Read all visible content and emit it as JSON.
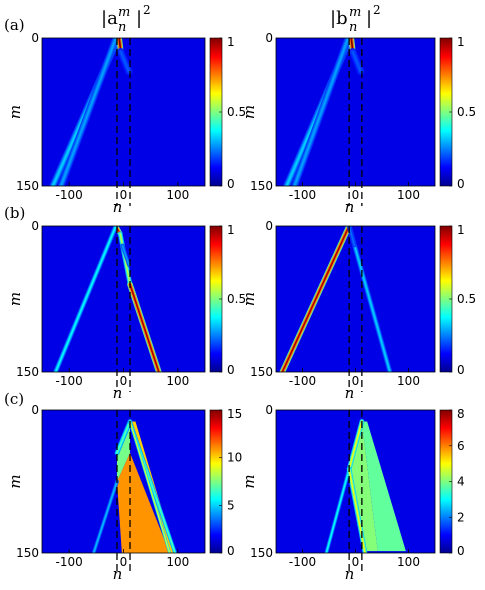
{
  "column_titles": [
    "|a",
    "|b"
  ],
  "column_title_super": "m",
  "column_title_sub": "n",
  "column_title_power": "2",
  "chart_data": [
    {
      "type": "heatmap",
      "row": "(a)",
      "quantity": "|a_n^m|^2",
      "xlabel": "n",
      "ylabel": "m",
      "xlim": [
        -150,
        150
      ],
      "ylim": [
        0,
        150
      ],
      "xticks": [
        "-100",
        "0",
        "100"
      ],
      "yticks": [
        "0",
        "150"
      ],
      "clim": [
        0,
        1
      ],
      "cbar_ticks": [
        "1",
        "0.5",
        "0"
      ],
      "cbar_values": [
        1,
        0.5,
        0
      ],
      "dashed_lines_n": [
        -12,
        12
      ],
      "beams": [
        {
          "start": [
            -10,
            0
          ],
          "end": [
            -130,
            150
          ],
          "peak": 0.25,
          "width": 3.5
        },
        {
          "start": [
            -14,
            0
          ],
          "end": [
            -115,
            150
          ],
          "peak": 0.2,
          "width": 3.5
        },
        {
          "start": [
            -8,
            0
          ],
          "end": [
            -5,
            14
          ],
          "peak": 1.0,
          "width": 3
        },
        {
          "start": [
            -5,
            14
          ],
          "end": [
            10,
            34
          ],
          "peak": 0.12,
          "width": 4
        }
      ]
    },
    {
      "type": "heatmap",
      "row": "(a)",
      "quantity": "|b_n^m|^2",
      "xlabel": "n",
      "ylabel": "m",
      "xlim": [
        -150,
        150
      ],
      "ylim": [
        0,
        150
      ],
      "xticks": [
        "-100",
        "0",
        "100"
      ],
      "yticks": [
        "0",
        "150"
      ],
      "clim": [
        0,
        1
      ],
      "cbar_ticks": [
        "1",
        "0.5",
        "0"
      ],
      "cbar_values": [
        1,
        0.5,
        0
      ],
      "dashed_lines_n": [
        -12,
        12
      ],
      "beams": [
        {
          "start": [
            -10,
            0
          ],
          "end": [
            -130,
            150
          ],
          "peak": 0.25,
          "width": 3.5
        },
        {
          "start": [
            -14,
            0
          ],
          "end": [
            -115,
            150
          ],
          "peak": 0.2,
          "width": 3.5
        },
        {
          "start": [
            -8,
            0
          ],
          "end": [
            -5,
            14
          ],
          "peak": 1.0,
          "width": 3
        },
        {
          "start": [
            -5,
            14
          ],
          "end": [
            10,
            34
          ],
          "peak": 0.12,
          "width": 4
        }
      ]
    },
    {
      "type": "heatmap",
      "row": "(b)",
      "quantity": "|a_n^m|^2",
      "xlabel": "n",
      "ylabel": "m",
      "xlim": [
        -150,
        150
      ],
      "ylim": [
        0,
        150
      ],
      "xticks": [
        "-100",
        "0",
        "100"
      ],
      "yticks": [
        "0",
        "150"
      ],
      "clim": [
        0,
        1
      ],
      "cbar_ticks": [
        "1",
        "0.5",
        "0"
      ],
      "cbar_values": [
        1,
        0.5,
        0
      ],
      "dashed_lines_n": [
        -12,
        12
      ],
      "beams": [
        {
          "start": [
            -14,
            0
          ],
          "end": [
            -6,
            8
          ],
          "peak": 0.9,
          "width": 2.5
        },
        {
          "start": [
            -6,
            8
          ],
          "end": [
            12,
            60
          ],
          "peak": 0.5,
          "width": 2.5
        },
        {
          "start": [
            12,
            60
          ],
          "end": [
            65,
            150
          ],
          "peak": 0.95,
          "width": 3
        },
        {
          "start": [
            -14,
            0
          ],
          "end": [
            -125,
            150
          ],
          "peak": 0.3,
          "width": 2.5
        },
        {
          "start": [
            -2,
            20
          ],
          "end": [
            10,
            40
          ],
          "peak": 0.2,
          "width": 2
        }
      ]
    },
    {
      "type": "heatmap",
      "row": "(b)",
      "quantity": "|b_n^m|^2",
      "xlabel": "n",
      "ylabel": "m",
      "xlim": [
        -150,
        150
      ],
      "ylim": [
        0,
        150
      ],
      "xticks": [
        "-100",
        "0",
        "100"
      ],
      "yticks": [
        "0",
        "150"
      ],
      "clim": [
        0,
        1
      ],
      "cbar_ticks": [
        "1",
        "0.5",
        "0"
      ],
      "cbar_values": [
        1,
        0.5,
        0
      ],
      "dashed_lines_n": [
        -12,
        12
      ],
      "beams": [
        {
          "start": [
            -12,
            0
          ],
          "end": [
            -138,
            150
          ],
          "peak": 0.95,
          "width": 3
        },
        {
          "start": [
            -12,
            0
          ],
          "end": [
            65,
            150
          ],
          "peak": 0.25,
          "width": 2.5
        },
        {
          "start": [
            -12,
            0
          ],
          "end": [
            -2,
            20
          ],
          "peak": 0.15,
          "width": 2
        }
      ]
    },
    {
      "type": "heatmap",
      "row": "(c)",
      "quantity": "|a_n^m|^2",
      "xlabel": "n",
      "ylabel": "m",
      "xlim": [
        -150,
        150
      ],
      "ylim": [
        0,
        150
      ],
      "xticks": [
        "-100",
        "0",
        "100"
      ],
      "yticks": [
        "0",
        "150"
      ],
      "clim": [
        0,
        15
      ],
      "cbar_ticks": [
        "15",
        "10",
        "5",
        "0"
      ],
      "cbar_values": [
        15,
        10,
        5,
        0
      ],
      "dashed_lines_n": [
        -12,
        12
      ],
      "regions": [
        {
          "shape": "polygon",
          "points": [
            [
              12,
              12
            ],
            [
              -12,
              45
            ],
            [
              -12,
              75
            ],
            [
              12,
              45
            ]
          ],
          "value": 6.5
        },
        {
          "shape": "polygon",
          "points": [
            [
              12,
              45
            ],
            [
              -12,
              75
            ],
            [
              -3,
              150
            ],
            [
              85,
              150
            ]
          ],
          "value": 10.5
        },
        {
          "shape": "polygon",
          "points": [
            [
              12,
              12
            ],
            [
              22,
              12
            ],
            [
              95,
              150
            ],
            [
              85,
              150
            ]
          ],
          "value": 9.5
        }
      ],
      "beams": [
        {
          "start": [
            12,
            12
          ],
          "end": [
            -12,
            45
          ],
          "peak": 6,
          "width": 2.5
        },
        {
          "start": [
            -12,
            75
          ],
          "end": [
            -55,
            150
          ],
          "peak": 3.5,
          "width": 2
        },
        {
          "start": [
            12,
            12
          ],
          "end": [
            95,
            150
          ],
          "peak": 6,
          "width": 2
        },
        {
          "start": [
            12,
            12
          ],
          "end": [
            85,
            150
          ],
          "peak": 8,
          "width": 1.5
        }
      ]
    },
    {
      "type": "heatmap",
      "row": "(c)",
      "quantity": "|b_n^m|^2",
      "xlabel": "n",
      "ylabel": "m",
      "xlim": [
        -150,
        150
      ],
      "ylim": [
        0,
        150
      ],
      "xticks": [
        "-100",
        "0",
        "100"
      ],
      "yticks": [
        "0",
        "150"
      ],
      "clim": [
        0,
        8
      ],
      "cbar_ticks": [
        "8",
        "6",
        "4",
        "2",
        "0"
      ],
      "cbar_values": [
        8,
        6,
        4,
        2,
        0
      ],
      "dashed_lines_n": [
        -12,
        12
      ],
      "regions": [
        {
          "shape": "polygon",
          "points": [
            [
              12,
              12
            ],
            [
              -12,
              62
            ],
            [
              18,
              148
            ],
            [
              42,
              148
            ]
          ],
          "value": 3.6
        },
        {
          "shape": "polygon",
          "points": [
            [
              12,
              12
            ],
            [
              42,
              148
            ],
            [
              95,
              148
            ],
            [
              22,
              12
            ]
          ],
          "value": 3.3
        }
      ],
      "beams": [
        {
          "start": [
            12,
            12
          ],
          "end": [
            -12,
            62
          ],
          "peak": 4.5,
          "width": 2.5
        },
        {
          "start": [
            -12,
            62
          ],
          "end": [
            -55,
            150
          ],
          "peak": 2.5,
          "width": 2
        },
        {
          "start": [
            -12,
            62
          ],
          "end": [
            18,
            150
          ],
          "peak": 4.5,
          "width": 2.5
        }
      ]
    }
  ]
}
